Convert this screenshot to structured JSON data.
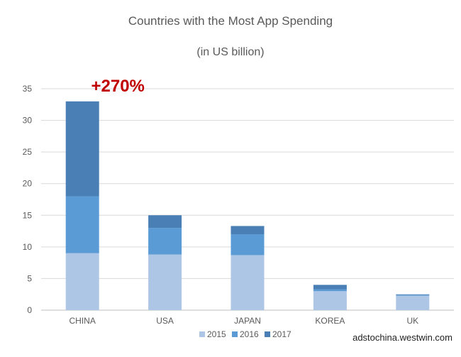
{
  "chart_data": {
    "type": "bar",
    "stacked": true,
    "title": "Countries with the Most App Spending",
    "subtitle": "(in US billion)",
    "categories": [
      "CHINA",
      "USA",
      "JAPAN",
      "KOREA",
      "UK"
    ],
    "series": [
      {
        "name": "2015",
        "color": "#aec6e6",
        "values": [
          9,
          8.8,
          8.7,
          3,
          2.3
        ]
      },
      {
        "name": "2016",
        "color": "#5b9bd5",
        "values": [
          9,
          4.2,
          3.3,
          0.3,
          0.1
        ]
      },
      {
        "name": "2017",
        "color": "#4a7fb5",
        "values": [
          15,
          2,
          1.3,
          0.7,
          0.1
        ]
      }
    ],
    "yticks": [
      0,
      5,
      10,
      15,
      20,
      25,
      30,
      35
    ],
    "ylim": [
      0,
      35
    ],
    "grid": true,
    "legend_position": "bottom",
    "annotation": {
      "text": "+270%",
      "category": "CHINA",
      "color": "#c00000"
    },
    "source_text": "adstochina.westwin.com"
  }
}
